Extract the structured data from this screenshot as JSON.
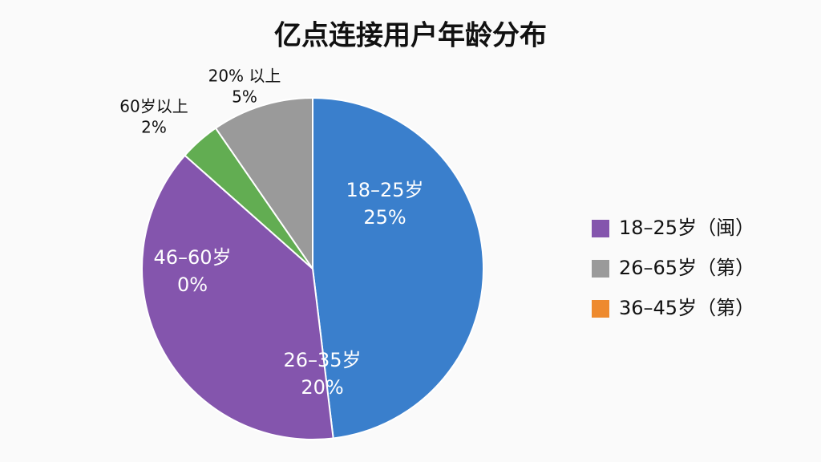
{
  "chart_data": {
    "type": "pie",
    "title": "亿点连接用户年龄分布",
    "categories": [
      "18–25岁",
      "26–35岁",
      "46–60岁",
      "60岁以上",
      "20% 以上"
    ],
    "values": [
      25,
      20,
      0,
      2,
      5
    ],
    "value_labels": [
      "25%",
      "20%",
      "0%",
      "2%",
      "5%"
    ],
    "colors": [
      "#3a7fcc",
      "#8455ad",
      "#ee8a2e",
      "#62ad52",
      "#9a9a9a"
    ],
    "legend": [
      {
        "label": "18–25岁（闽）",
        "color": "#8455ad"
      },
      {
        "label": "26–65岁（第）",
        "color": "#9a9a9a"
      },
      {
        "label": "36–45岁（第）",
        "color": "#ee8a2e"
      }
    ]
  }
}
